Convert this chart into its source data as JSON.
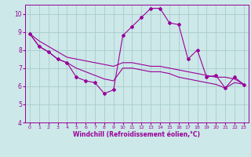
{
  "title": "",
  "xlabel": "Windchill (Refroidissement éolien,°C)",
  "bg_color": "#cce8e8",
  "grid_color": "#aacccc",
  "line_color": "#990099",
  "xlim": [
    -0.5,
    23.5
  ],
  "ylim": [
    4,
    10.5
  ],
  "xticks": [
    0,
    1,
    2,
    3,
    4,
    5,
    6,
    7,
    8,
    9,
    10,
    11,
    12,
    13,
    14,
    15,
    16,
    17,
    18,
    19,
    20,
    21,
    22,
    23
  ],
  "yticks": [
    4,
    5,
    6,
    7,
    8,
    9,
    10
  ],
  "line1_x": [
    0,
    1,
    2,
    3,
    4,
    5,
    6,
    7,
    8,
    9,
    10,
    11,
    12,
    13,
    14,
    15,
    16,
    17,
    18,
    19,
    20,
    21,
    22,
    23
  ],
  "line1_y": [
    8.9,
    8.2,
    7.9,
    7.5,
    7.3,
    6.5,
    6.3,
    6.2,
    5.6,
    5.8,
    8.8,
    9.3,
    9.8,
    10.3,
    10.3,
    9.5,
    9.4,
    7.5,
    8.0,
    6.5,
    6.6,
    5.9,
    6.5,
    6.1
  ],
  "line2_x": [
    0,
    1,
    2,
    3,
    4,
    5,
    6,
    7,
    8,
    9,
    10,
    11,
    12,
    13,
    14,
    15,
    16,
    17,
    18,
    19,
    20,
    21,
    22,
    23
  ],
  "line2_y": [
    8.9,
    8.5,
    8.2,
    7.9,
    7.6,
    7.5,
    7.4,
    7.3,
    7.2,
    7.1,
    7.3,
    7.3,
    7.2,
    7.1,
    7.1,
    7.0,
    6.9,
    6.8,
    6.7,
    6.6,
    6.5,
    6.5,
    6.4,
    6.1
  ],
  "line3_x": [
    0,
    1,
    2,
    3,
    4,
    5,
    6,
    7,
    8,
    9,
    10,
    11,
    12,
    13,
    14,
    15,
    16,
    17,
    18,
    19,
    20,
    21,
    22,
    23
  ],
  "line3_y": [
    8.9,
    8.2,
    7.9,
    7.5,
    7.3,
    7.0,
    6.8,
    6.6,
    6.4,
    6.3,
    7.0,
    7.0,
    6.9,
    6.8,
    6.8,
    6.7,
    6.5,
    6.4,
    6.3,
    6.2,
    6.1,
    5.9,
    6.2,
    6.1
  ],
  "marker_style": "D",
  "marker_size": 2.0,
  "lw": 0.8
}
